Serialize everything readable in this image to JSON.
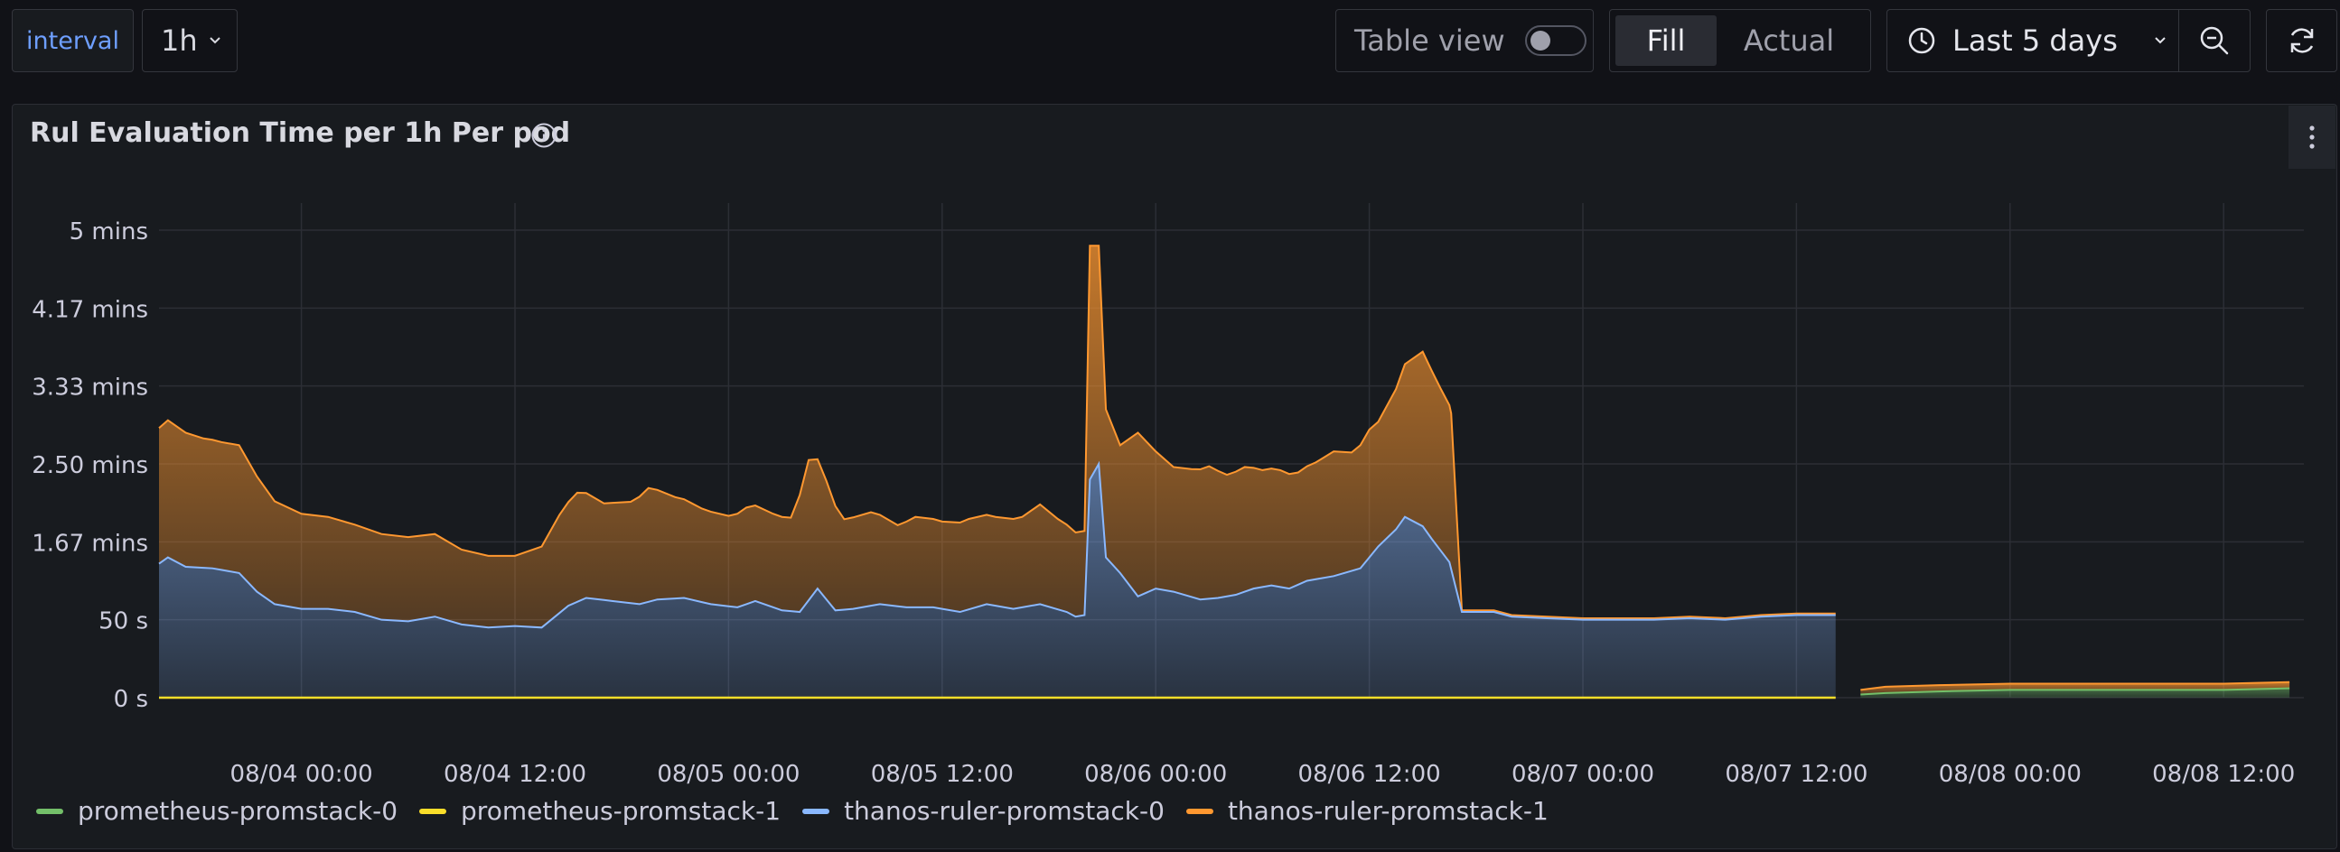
{
  "toolbar": {
    "variable_label": "interval",
    "variable_value": "1h",
    "table_view_label": "Table view",
    "fill_label": "Fill",
    "actual_label": "Actual",
    "time_range": "Last 5 days"
  },
  "panel": {
    "title": "Rul Evaluation Time per 1h Per pod"
  },
  "colors": {
    "prometheus-promstack-0": "#73bf69",
    "prometheus-promstack-1": "#fade2a",
    "thanos-ruler-promstack-0": "#8ab8ff",
    "thanos-ruler-promstack-1": "#ff9830"
  },
  "chart_data": {
    "type": "area",
    "stacked": true,
    "x_range": [
      "2023-08-03 16:00",
      "2023-08-08 16:00"
    ],
    "y_unit": "seconds",
    "ylim": [
      0,
      300
    ],
    "y_ticks": [
      {
        "value": 0,
        "label": "0 s"
      },
      {
        "value": 50,
        "label": "50 s"
      },
      {
        "value": 100,
        "label": "1.67 mins"
      },
      {
        "value": 150,
        "label": "2.50 mins"
      },
      {
        "value": 200,
        "label": "3.33 mins"
      },
      {
        "value": 250,
        "label": "4.17 mins"
      },
      {
        "value": 300,
        "label": "5 mins"
      }
    ],
    "x_ticks": [
      {
        "x": "08/04 00:00",
        "hours": 8,
        "label": "08/04 00:00"
      },
      {
        "x": "08/04 12:00",
        "hours": 20,
        "label": "08/04 12:00"
      },
      {
        "x": "08/05 00:00",
        "hours": 32,
        "label": "08/05 00:00"
      },
      {
        "x": "08/05 12:00",
        "hours": 44,
        "label": "08/05 12:00"
      },
      {
        "x": "08/06 00:00",
        "hours": 56,
        "label": "08/06 00:00"
      },
      {
        "x": "08/06 12:00",
        "hours": 68,
        "label": "08/06 12:00"
      },
      {
        "x": "08/07 00:00",
        "hours": 80,
        "label": "08/07 00:00"
      },
      {
        "x": "08/07 12:00",
        "hours": 92,
        "label": "08/07 12:00"
      },
      {
        "x": "08/08 00:00",
        "hours": 104,
        "label": "08/08 00:00"
      },
      {
        "x": "08/08 12:00",
        "hours": 116,
        "label": "08/08 12:00"
      }
    ],
    "grid": true,
    "legend_position": "bottom-left",
    "series": [
      {
        "name": "prometheus-promstack-0",
        "color": "#73bf69",
        "points": [
          [
            95.6,
            2.0
          ],
          [
            97.0,
            3.0
          ],
          [
            100.0,
            4.0
          ],
          [
            104.0,
            5.0
          ],
          [
            108.0,
            5.0
          ],
          [
            112.0,
            5.0
          ],
          [
            116.0,
            5.0
          ],
          [
            119.7,
            6.0
          ]
        ]
      },
      {
        "name": "prometheus-promstack-1",
        "color": "#fade2a",
        "points": [
          [
            0,
            0
          ],
          [
            94.2,
            0
          ]
        ]
      },
      {
        "name": "thanos-ruler-promstack-0",
        "color": "#8ab8ff",
        "points": [
          [
            0,
            86
          ],
          [
            0.5,
            90
          ],
          [
            1.5,
            84
          ],
          [
            3.0,
            83
          ],
          [
            4.5,
            80
          ],
          [
            5.5,
            68
          ],
          [
            6.5,
            60
          ],
          [
            8.0,
            57
          ],
          [
            9.5,
            57
          ],
          [
            11.0,
            55
          ],
          [
            12.5,
            50
          ],
          [
            14.0,
            49
          ],
          [
            15.5,
            52
          ],
          [
            17.0,
            47
          ],
          [
            18.5,
            45
          ],
          [
            20.0,
            46
          ],
          [
            21.5,
            45
          ],
          [
            23.0,
            59
          ],
          [
            24.0,
            64
          ],
          [
            25.5,
            62
          ],
          [
            27.0,
            60
          ],
          [
            28.0,
            63
          ],
          [
            29.5,
            64
          ],
          [
            31.0,
            60
          ],
          [
            32.5,
            58
          ],
          [
            33.5,
            62
          ],
          [
            35.0,
            56
          ],
          [
            36.0,
            55
          ],
          [
            37.0,
            70
          ],
          [
            38.0,
            56
          ],
          [
            39.0,
            57
          ],
          [
            40.5,
            60
          ],
          [
            42.0,
            58
          ],
          [
            43.5,
            58
          ],
          [
            45.0,
            55
          ],
          [
            46.5,
            60
          ],
          [
            48.0,
            57
          ],
          [
            49.5,
            60
          ],
          [
            51.0,
            55
          ],
          [
            51.5,
            52
          ],
          [
            52.0,
            53
          ],
          [
            52.3,
            140
          ],
          [
            52.8,
            150
          ],
          [
            53.2,
            90
          ],
          [
            54.0,
            80
          ],
          [
            55.0,
            65
          ],
          [
            56.0,
            70
          ],
          [
            57.0,
            68
          ],
          [
            58.5,
            63
          ],
          [
            59.5,
            64
          ],
          [
            60.5,
            66
          ],
          [
            61.5,
            70
          ],
          [
            62.5,
            72
          ],
          [
            63.5,
            70
          ],
          [
            64.5,
            75
          ],
          [
            66.0,
            78
          ],
          [
            67.5,
            83
          ],
          [
            68.0,
            90
          ],
          [
            68.5,
            97
          ],
          [
            69.5,
            108
          ],
          [
            70.0,
            116
          ],
          [
            71.0,
            110
          ],
          [
            71.5,
            102
          ],
          [
            72.5,
            87
          ],
          [
            73.2,
            55
          ],
          [
            74.0,
            55
          ],
          [
            75.0,
            55
          ],
          [
            76.0,
            52
          ],
          [
            78.0,
            51
          ],
          [
            80.0,
            50
          ],
          [
            82.0,
            50
          ],
          [
            84.0,
            50
          ],
          [
            86.0,
            51
          ],
          [
            88.0,
            50
          ],
          [
            90.0,
            52
          ],
          [
            92.0,
            53
          ],
          [
            94.2,
            53
          ]
        ]
      },
      {
        "name": "thanos-ruler-promstack-1",
        "color": "#ff9830",
        "points": [
          [
            0,
            87
          ],
          [
            0.5,
            88
          ],
          [
            1.5,
            86
          ],
          [
            2.5,
            83
          ],
          [
            3.5,
            82
          ],
          [
            4.5,
            82
          ],
          [
            5.5,
            74
          ],
          [
            6.5,
            66
          ],
          [
            8.0,
            61
          ],
          [
            9.5,
            59
          ],
          [
            11.0,
            56
          ],
          [
            12.5,
            55
          ],
          [
            14.0,
            54
          ],
          [
            15.5,
            53
          ],
          [
            17.0,
            48
          ],
          [
            18.5,
            46
          ],
          [
            20.0,
            45
          ],
          [
            21.5,
            52
          ],
          [
            22.5,
            63
          ],
          [
            23.5,
            70
          ],
          [
            25.0,
            62
          ],
          [
            26.5,
            65
          ],
          [
            27.5,
            73
          ],
          [
            29.0,
            65
          ],
          [
            30.5,
            60
          ],
          [
            32.0,
            58
          ],
          [
            33.0,
            62
          ],
          [
            34.5,
            60
          ],
          [
            35.5,
            60
          ],
          [
            36.5,
            90
          ],
          [
            37.5,
            76
          ],
          [
            38.5,
            58
          ],
          [
            40.0,
            60
          ],
          [
            41.5,
            52
          ],
          [
            42.5,
            58
          ],
          [
            44.0,
            56
          ],
          [
            45.5,
            58
          ],
          [
            47.0,
            57
          ],
          [
            48.5,
            58
          ],
          [
            49.5,
            64
          ],
          [
            50.5,
            58
          ],
          [
            51.5,
            54
          ],
          [
            52.0,
            54
          ],
          [
            52.3,
            150
          ],
          [
            52.8,
            140
          ],
          [
            53.2,
            95
          ],
          [
            54.0,
            82
          ],
          [
            55.0,
            105
          ],
          [
            56.0,
            88
          ],
          [
            57.0,
            80
          ],
          [
            58.0,
            82
          ],
          [
            59.0,
            85
          ],
          [
            60.0,
            78
          ],
          [
            61.0,
            80
          ],
          [
            62.0,
            75
          ],
          [
            63.0,
            75
          ],
          [
            64.0,
            72
          ],
          [
            65.0,
            75
          ],
          [
            66.0,
            80
          ],
          [
            67.0,
            76
          ],
          [
            68.0,
            82
          ],
          [
            68.5,
            80
          ],
          [
            69.5,
            90
          ],
          [
            70.0,
            98
          ],
          [
            71.0,
            112
          ],
          [
            72.0,
            104
          ],
          [
            72.6,
            100
          ],
          [
            73.2,
            1
          ],
          [
            74.0,
            1
          ],
          [
            80.0,
            1
          ],
          [
            94.2,
            1
          ],
          [
            95.6,
            3.0
          ],
          [
            97.0,
            4.0
          ],
          [
            100.0,
            4.0
          ],
          [
            104.0,
            4.0
          ],
          [
            108.0,
            4.0
          ],
          [
            112.0,
            4.0
          ],
          [
            116.0,
            4.0
          ],
          [
            119.7,
            4.0
          ]
        ]
      }
    ]
  }
}
